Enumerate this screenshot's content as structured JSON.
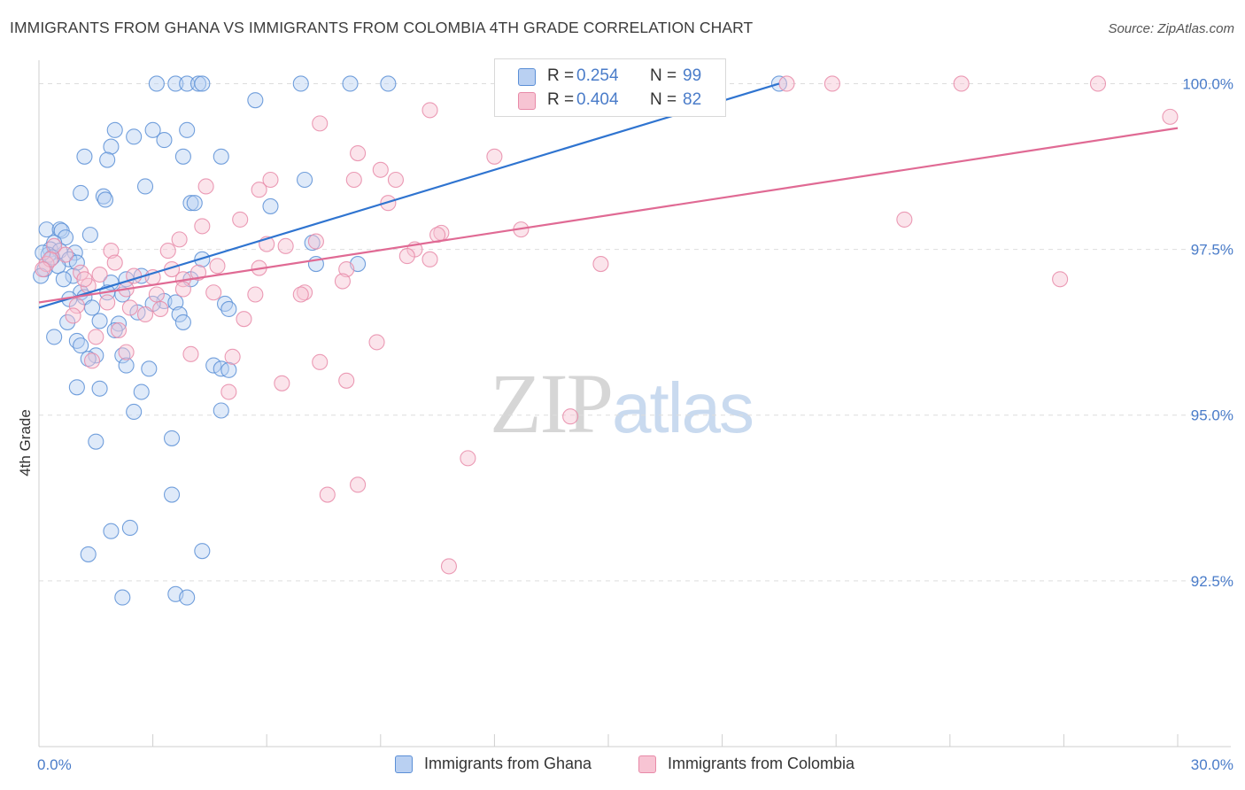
{
  "title": "IMMIGRANTS FROM GHANA VS IMMIGRANTS FROM COLOMBIA 4TH GRADE CORRELATION CHART",
  "source": "Source: ZipAtlas.com",
  "watermark": {
    "zip": "ZIP",
    "atlas": "atlas"
  },
  "colors": {
    "ghana_fill": "#b9d0f2",
    "ghana_stroke": "#5b8fd6",
    "ghana_line": "#2f74d0",
    "colombia_fill": "#f7c4d3",
    "colombia_stroke": "#e88aa8",
    "colombia_line": "#e06a94",
    "tick_text": "#4a7cc9",
    "grid": "#dddddd"
  },
  "legend": {
    "ghana": {
      "r_label": "R =",
      "r_value": "0.254",
      "n_label": "N =",
      "n_value": "99"
    },
    "colombia": {
      "r_label": "R =",
      "r_value": "0.404",
      "n_label": "N =",
      "n_value": "82"
    }
  },
  "bottom_legend": {
    "ghana": "Immigrants from Ghana",
    "colombia": "Immigrants from Colombia"
  },
  "chart_data": {
    "type": "scatter",
    "title": "IMMIGRANTS FROM GHANA VS IMMIGRANTS FROM COLOMBIA 4TH GRADE CORRELATION CHART",
    "xlabel": "",
    "ylabel": "4th Grade",
    "xlim": [
      0,
      30
    ],
    "ylim": [
      90.0,
      100.3
    ],
    "x_tick_labels": [
      "0.0%",
      "30.0%"
    ],
    "y_ticks": [
      92.5,
      95.0,
      97.5,
      100.0
    ],
    "y_tick_labels": [
      "92.5%",
      "95.0%",
      "97.5%",
      "100.0%"
    ],
    "grid": true,
    "series": [
      {
        "name": "Immigrants from Ghana",
        "R": 0.254,
        "N": 99,
        "trend": {
          "x": [
            0,
            19.5
          ],
          "y": [
            96.62,
            100.0
          ]
        },
        "points": [
          [
            3.1,
            100.0
          ],
          [
            3.6,
            100.0
          ],
          [
            3.9,
            100.0
          ],
          [
            4.2,
            100.0
          ],
          [
            4.3,
            100.0
          ],
          [
            6.9,
            100.0
          ],
          [
            8.2,
            100.0
          ],
          [
            9.2,
            100.0
          ],
          [
            19.5,
            100.0
          ],
          [
            5.7,
            99.75
          ],
          [
            2.0,
            99.3
          ],
          [
            3.0,
            99.3
          ],
          [
            3.9,
            99.3
          ],
          [
            2.5,
            99.2
          ],
          [
            3.3,
            99.15
          ],
          [
            1.9,
            99.05
          ],
          [
            1.2,
            98.9
          ],
          [
            3.8,
            98.9
          ],
          [
            4.8,
            98.9
          ],
          [
            1.8,
            98.85
          ],
          [
            7.0,
            98.55
          ],
          [
            2.8,
            98.45
          ],
          [
            1.1,
            98.35
          ],
          [
            1.7,
            98.3
          ],
          [
            4.0,
            98.2
          ],
          [
            4.1,
            98.2
          ],
          [
            6.1,
            98.15
          ],
          [
            1.75,
            98.25
          ],
          [
            0.2,
            97.8
          ],
          [
            0.55,
            97.8
          ],
          [
            0.6,
            97.78
          ],
          [
            1.35,
            97.72
          ],
          [
            0.7,
            97.68
          ],
          [
            0.4,
            97.6
          ],
          [
            0.3,
            97.5
          ],
          [
            0.55,
            97.48
          ],
          [
            0.95,
            97.45
          ],
          [
            0.25,
            97.42
          ],
          [
            0.8,
            97.35
          ],
          [
            1.0,
            97.3
          ],
          [
            0.5,
            97.25
          ],
          [
            0.15,
            97.2
          ],
          [
            0.05,
            97.1
          ],
          [
            0.9,
            97.1
          ],
          [
            0.65,
            97.05
          ],
          [
            7.3,
            97.28
          ],
          [
            8.4,
            97.28
          ],
          [
            7.2,
            97.6
          ],
          [
            4.3,
            97.35
          ],
          [
            2.3,
            97.05
          ],
          [
            2.7,
            97.1
          ],
          [
            4.0,
            97.05
          ],
          [
            1.9,
            97.0
          ],
          [
            1.8,
            96.85
          ],
          [
            1.1,
            96.85
          ],
          [
            1.2,
            96.78
          ],
          [
            0.8,
            96.75
          ],
          [
            2.2,
            96.82
          ],
          [
            3.3,
            96.72
          ],
          [
            3.0,
            96.68
          ],
          [
            3.6,
            96.7
          ],
          [
            4.9,
            96.68
          ],
          [
            1.4,
            96.62
          ],
          [
            2.6,
            96.55
          ],
          [
            3.7,
            96.52
          ],
          [
            0.75,
            96.4
          ],
          [
            1.6,
            96.42
          ],
          [
            2.1,
            96.38
          ],
          [
            3.8,
            96.4
          ],
          [
            2.0,
            96.28
          ],
          [
            0.4,
            96.18
          ],
          [
            1.0,
            96.12
          ],
          [
            1.1,
            96.05
          ],
          [
            1.5,
            95.9
          ],
          [
            2.2,
            95.9
          ],
          [
            1.3,
            95.85
          ],
          [
            2.3,
            95.75
          ],
          [
            2.9,
            95.7
          ],
          [
            4.6,
            95.75
          ],
          [
            4.8,
            95.7
          ],
          [
            5.0,
            95.68
          ],
          [
            1.0,
            95.42
          ],
          [
            1.6,
            95.4
          ],
          [
            2.7,
            95.35
          ],
          [
            2.5,
            95.05
          ],
          [
            4.8,
            95.07
          ],
          [
            1.5,
            94.6
          ],
          [
            3.5,
            94.65
          ],
          [
            3.5,
            93.8
          ],
          [
            2.4,
            93.3
          ],
          [
            1.9,
            93.25
          ],
          [
            4.3,
            92.95
          ],
          [
            1.3,
            92.9
          ],
          [
            2.2,
            92.25
          ],
          [
            3.6,
            92.3
          ],
          [
            3.9,
            92.25
          ],
          [
            0.35,
            97.38
          ],
          [
            0.1,
            97.45
          ],
          [
            5.0,
            96.6
          ]
        ]
      },
      {
        "name": "Immigrants from Colombia",
        "R": 0.404,
        "N": 82,
        "trend": {
          "x": [
            0,
            30
          ],
          "y": [
            96.7,
            99.33
          ]
        },
        "points": [
          [
            19.7,
            100.0
          ],
          [
            20.9,
            100.0
          ],
          [
            24.3,
            100.0
          ],
          [
            27.9,
            100.0
          ],
          [
            29.8,
            99.5
          ],
          [
            10.3,
            99.6
          ],
          [
            7.4,
            99.4
          ],
          [
            12.0,
            98.9
          ],
          [
            8.4,
            98.95
          ],
          [
            9.0,
            98.7
          ],
          [
            8.3,
            98.55
          ],
          [
            6.1,
            98.55
          ],
          [
            9.4,
            98.55
          ],
          [
            5.8,
            98.4
          ],
          [
            4.4,
            98.45
          ],
          [
            9.2,
            98.2
          ],
          [
            22.8,
            97.95
          ],
          [
            5.3,
            97.95
          ],
          [
            4.3,
            97.85
          ],
          [
            12.7,
            97.8
          ],
          [
            10.6,
            97.75
          ],
          [
            10.5,
            97.72
          ],
          [
            3.7,
            97.65
          ],
          [
            6.0,
            97.58
          ],
          [
            6.5,
            97.55
          ],
          [
            7.3,
            97.62
          ],
          [
            9.9,
            97.5
          ],
          [
            3.4,
            97.48
          ],
          [
            1.9,
            97.48
          ],
          [
            0.4,
            97.55
          ],
          [
            0.7,
            97.42
          ],
          [
            9.7,
            97.4
          ],
          [
            10.3,
            97.35
          ],
          [
            14.8,
            97.28
          ],
          [
            4.7,
            97.25
          ],
          [
            5.8,
            97.22
          ],
          [
            8.1,
            97.2
          ],
          [
            0.2,
            97.28
          ],
          [
            1.1,
            97.15
          ],
          [
            1.6,
            97.12
          ],
          [
            2.5,
            97.1
          ],
          [
            3.0,
            97.08
          ],
          [
            3.8,
            97.05
          ],
          [
            8.0,
            97.02
          ],
          [
            26.9,
            97.05
          ],
          [
            1.3,
            96.95
          ],
          [
            2.3,
            96.9
          ],
          [
            3.1,
            96.82
          ],
          [
            3.8,
            96.9
          ],
          [
            4.6,
            96.85
          ],
          [
            5.7,
            96.82
          ],
          [
            7.0,
            96.85
          ],
          [
            1.0,
            96.65
          ],
          [
            2.4,
            96.62
          ],
          [
            3.2,
            96.6
          ],
          [
            2.8,
            96.52
          ],
          [
            0.9,
            96.5
          ],
          [
            5.4,
            96.45
          ],
          [
            2.1,
            96.28
          ],
          [
            1.5,
            96.18
          ],
          [
            8.9,
            96.1
          ],
          [
            4.0,
            95.92
          ],
          [
            2.3,
            95.95
          ],
          [
            5.1,
            95.88
          ],
          [
            1.4,
            95.82
          ],
          [
            7.4,
            95.8
          ],
          [
            8.1,
            95.52
          ],
          [
            6.4,
            95.48
          ],
          [
            5.0,
            95.35
          ],
          [
            14.0,
            94.98
          ],
          [
            11.3,
            94.35
          ],
          [
            8.4,
            93.95
          ],
          [
            7.6,
            93.8
          ],
          [
            10.8,
            92.72
          ],
          [
            0.3,
            97.35
          ],
          [
            0.1,
            97.2
          ],
          [
            2.0,
            97.3
          ],
          [
            1.2,
            97.05
          ],
          [
            3.5,
            97.2
          ],
          [
            4.2,
            97.15
          ],
          [
            6.9,
            96.82
          ],
          [
            1.8,
            96.7
          ]
        ]
      }
    ]
  }
}
